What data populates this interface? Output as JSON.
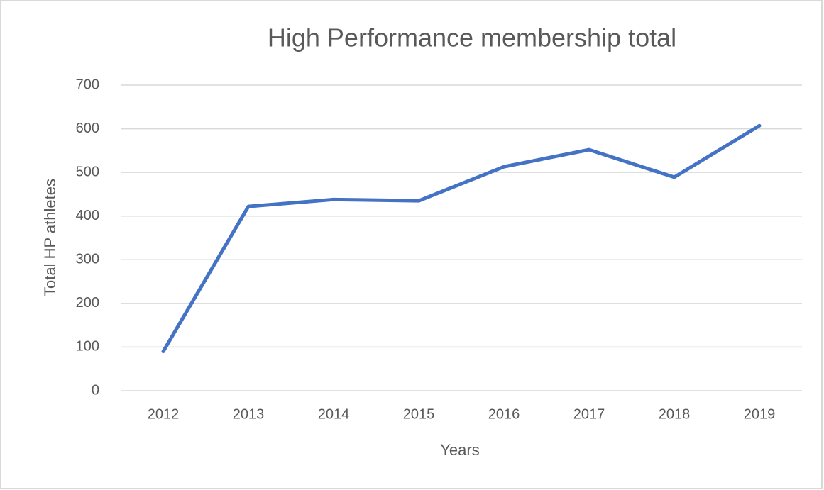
{
  "chart_data": {
    "type": "line",
    "title": "High Performance membership total",
    "x_label": "Years",
    "y_label": "Total HP athletes",
    "categories": [
      "2012",
      "2013",
      "2014",
      "2015",
      "2016",
      "2017",
      "2018",
      "2019"
    ],
    "series": [
      {
        "color": "#4472c4",
        "values": [
          90,
          422,
          438,
          435,
          513,
          552,
          489,
          607
        ]
      }
    ],
    "ylim": [
      0,
      700
    ],
    "yticks": [
      0,
      100,
      200,
      300,
      400,
      500,
      600,
      700
    ],
    "grid": true
  }
}
